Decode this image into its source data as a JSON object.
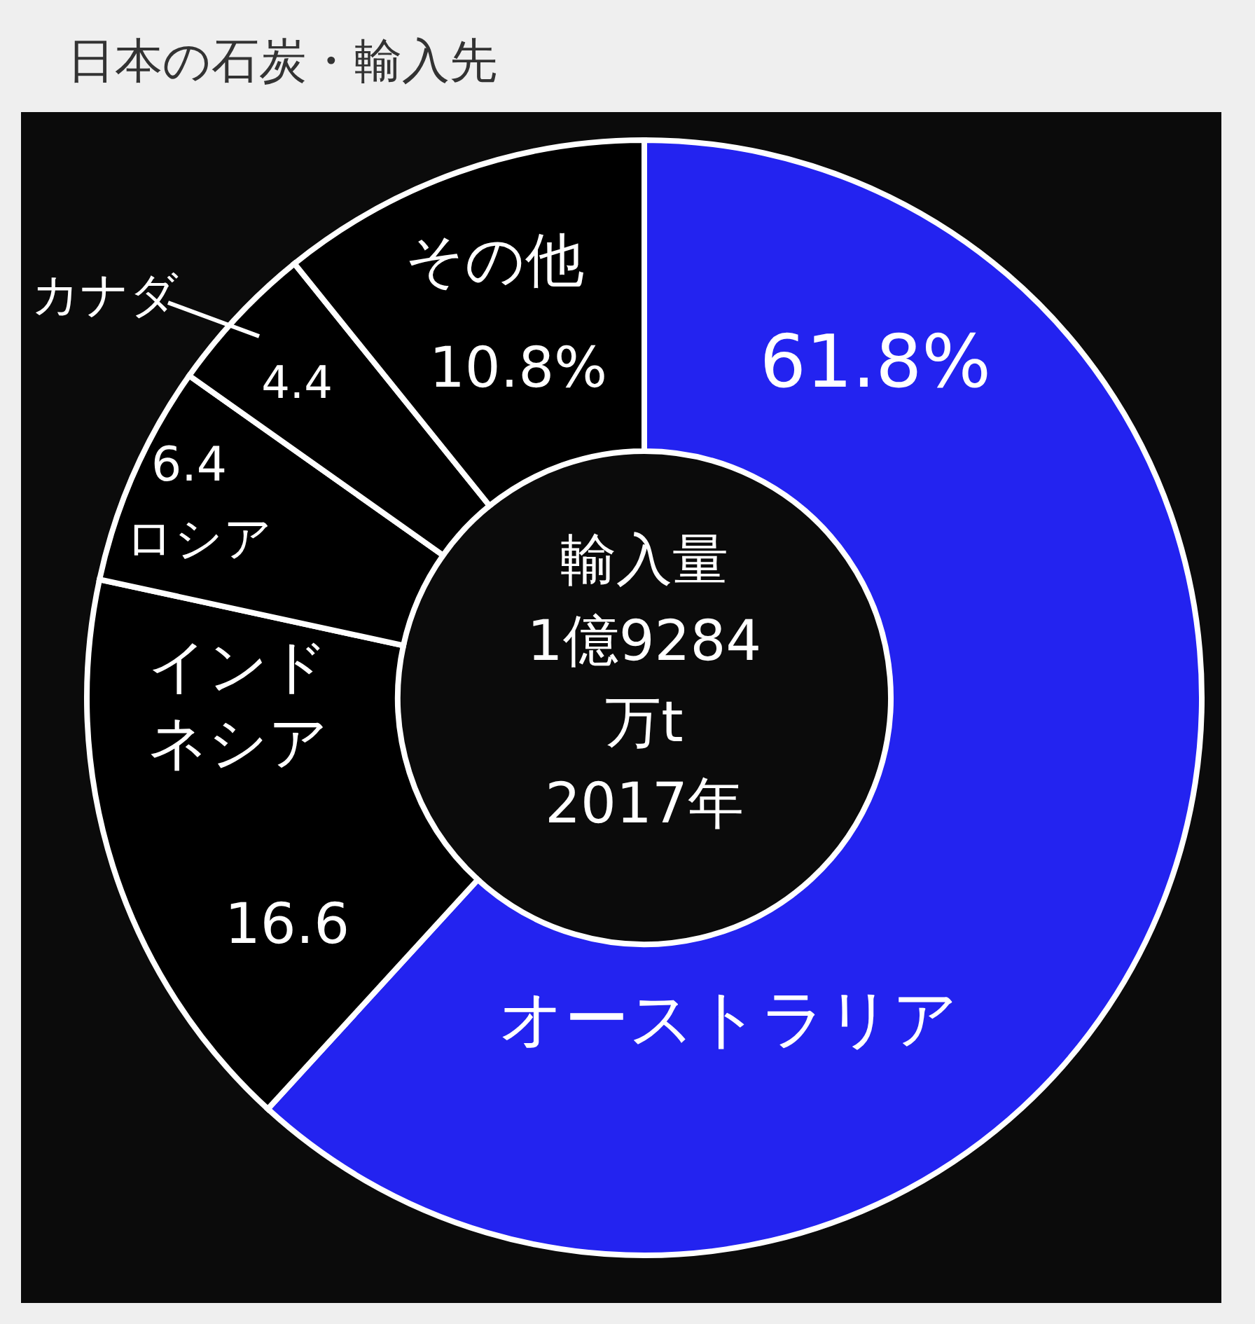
{
  "chart_data": {
    "type": "donut",
    "title": "日本の石炭・輸入先",
    "categories": [
      "オーストラリア",
      "インドネシア",
      "ロシア",
      "カナダ",
      "その他"
    ],
    "values": [
      61.8,
      16.6,
      6.4,
      4.4,
      10.8
    ],
    "value_labels": [
      "61.8%",
      "16.6",
      "6.4",
      "4.4",
      "10.8%"
    ],
    "colors": [
      "#2323f0",
      "#000000",
      "#000000",
      "#000000",
      "#000000"
    ],
    "annotations": [
      "輸入量",
      "1億9284万t",
      "2017年"
    ]
  }
}
